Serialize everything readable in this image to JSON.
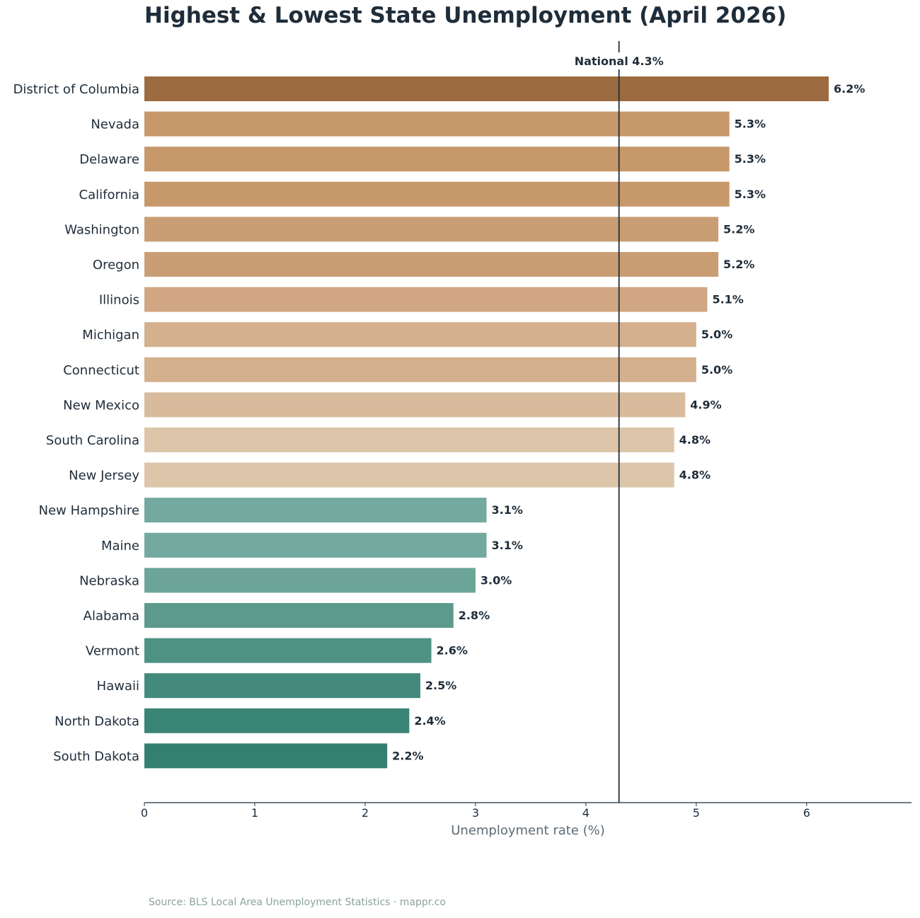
{
  "chart_data": {
    "type": "bar",
    "orientation": "horizontal",
    "title": "Highest & Lowest State Unemployment (April 2026)",
    "xlabel": "Unemployment rate (%)",
    "ylabel": "",
    "xlim": [
      0,
      6.95
    ],
    "xticks": [
      0,
      1,
      2,
      3,
      4,
      5,
      6
    ],
    "grid": false,
    "categories": [
      "District of Columbia",
      "Nevada",
      "Delaware",
      "California",
      "Washington",
      "Oregon",
      "Illinois",
      "Michigan",
      "Connecticut",
      "New Mexico",
      "South Carolina",
      "New Jersey",
      "New Hampshire",
      "Maine",
      "Nebraska",
      "Alabama",
      "Vermont",
      "Hawaii",
      "North Dakota",
      "South Dakota"
    ],
    "values": [
      6.2,
      5.3,
      5.3,
      5.3,
      5.2,
      5.2,
      5.1,
      5.0,
      5.0,
      4.9,
      4.8,
      4.8,
      3.1,
      3.1,
      3.0,
      2.8,
      2.6,
      2.5,
      2.4,
      2.2
    ],
    "value_labels": [
      "6.2%",
      "5.3%",
      "5.3%",
      "5.3%",
      "5.2%",
      "5.2%",
      "5.1%",
      "5.0%",
      "5.0%",
      "4.9%",
      "4.8%",
      "4.8%",
      "3.1%",
      "3.1%",
      "3.0%",
      "2.8%",
      "2.6%",
      "2.5%",
      "2.4%",
      "2.2%"
    ],
    "colors": [
      "#9c6b40",
      "#c6986a",
      "#c6986a",
      "#c6986a",
      "#c99e74",
      "#c99e74",
      "#d1a783",
      "#d4b08e",
      "#d4b08e",
      "#d8bb9c",
      "#dcc5a9",
      "#dcc5a9",
      "#73a99f",
      "#73a99f",
      "#6ca598",
      "#5c9a8d",
      "#4e9283",
      "#438a7d",
      "#3a8476",
      "#347f71"
    ],
    "reference_line": {
      "value": 4.3,
      "label": "National 4.3%",
      "color": "#1f2d3a"
    }
  },
  "source": "Source: BLS Local Area Unemployment Statistics · mappr.co"
}
